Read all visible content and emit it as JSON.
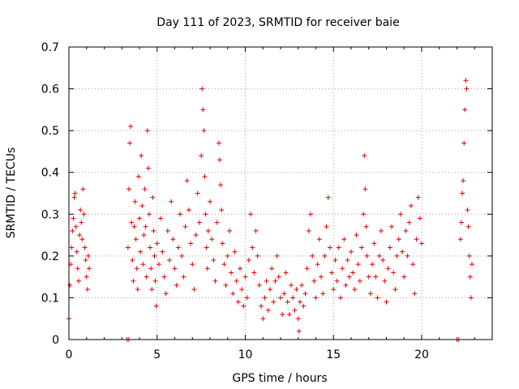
{
  "chart_data": {
    "type": "scatter",
    "title": "Day 111 of 2023, SRMTID for receiver baie",
    "xlabel": "GPS time / hours",
    "ylabel": "SRMTID / TECUs",
    "xlim": [
      0,
      24
    ],
    "ylim": [
      0,
      0.7
    ],
    "xticks": [
      0,
      5,
      10,
      15,
      20
    ],
    "xtick_labels": [
      "0",
      "5",
      "10",
      "15",
      "20"
    ],
    "yticks": [
      0,
      0.1,
      0.2,
      0.3,
      0.4,
      0.5,
      0.6,
      0.7
    ],
    "ytick_labels": [
      "0",
      "0.1",
      "0.2",
      "0.3",
      "0.4",
      "0.5",
      "0.6",
      "0.7"
    ],
    "grid": true,
    "marker": "+",
    "color": "#e00000",
    "series": [
      {
        "name": "SRMTID",
        "points": [
          [
            0.0,
            0.05
          ],
          [
            0.05,
            0.13
          ],
          [
            0.1,
            0.18
          ],
          [
            0.15,
            0.22
          ],
          [
            0.2,
            0.26
          ],
          [
            0.25,
            0.29
          ],
          [
            0.3,
            0.34
          ],
          [
            0.35,
            0.35
          ],
          [
            0.4,
            0.27
          ],
          [
            0.45,
            0.21
          ],
          [
            0.5,
            0.17
          ],
          [
            0.55,
            0.14
          ],
          [
            0.6,
            0.25
          ],
          [
            0.65,
            0.31
          ],
          [
            0.7,
            0.28
          ],
          [
            0.75,
            0.24
          ],
          [
            0.8,
            0.36
          ],
          [
            0.85,
            0.3
          ],
          [
            0.9,
            0.22
          ],
          [
            0.95,
            0.19
          ],
          [
            1.0,
            0.15
          ],
          [
            1.05,
            0.12
          ],
          [
            1.1,
            0.2
          ],
          [
            1.15,
            0.17
          ],
          [
            3.3,
            0.0
          ],
          [
            3.4,
            0.0
          ],
          [
            3.35,
            0.22
          ],
          [
            3.4,
            0.36
          ],
          [
            3.45,
            0.47
          ],
          [
            3.5,
            0.51
          ],
          [
            3.55,
            0.28
          ],
          [
            3.6,
            0.19
          ],
          [
            3.65,
            0.14
          ],
          [
            3.7,
            0.27
          ],
          [
            3.75,
            0.33
          ],
          [
            3.8,
            0.24
          ],
          [
            3.85,
            0.17
          ],
          [
            3.9,
            0.12
          ],
          [
            3.95,
            0.39
          ],
          [
            4.0,
            0.29
          ],
          [
            4.05,
            0.21
          ],
          [
            4.1,
            0.44
          ],
          [
            4.15,
            0.32
          ],
          [
            4.2,
            0.18
          ],
          [
            4.25,
            0.25
          ],
          [
            4.3,
            0.36
          ],
          [
            4.35,
            0.27
          ],
          [
            4.4,
            0.15
          ],
          [
            4.45,
            0.5
          ],
          [
            4.5,
            0.41
          ],
          [
            4.55,
            0.3
          ],
          [
            4.6,
            0.22
          ],
          [
            4.65,
            0.17
          ],
          [
            4.7,
            0.12
          ],
          [
            4.75,
            0.34
          ],
          [
            4.8,
            0.26
          ],
          [
            4.85,
            0.2
          ],
          [
            4.9,
            0.14
          ],
          [
            4.95,
            0.08
          ],
          [
            5.0,
            0.23
          ],
          [
            5.1,
            0.18
          ],
          [
            5.2,
            0.29
          ],
          [
            5.3,
            0.21
          ],
          [
            5.4,
            0.15
          ],
          [
            5.5,
            0.11
          ],
          [
            5.6,
            0.26
          ],
          [
            5.7,
            0.19
          ],
          [
            5.8,
            0.33
          ],
          [
            5.9,
            0.24
          ],
          [
            6.0,
            0.17
          ],
          [
            6.1,
            0.13
          ],
          [
            6.2,
            0.22
          ],
          [
            6.3,
            0.3
          ],
          [
            6.4,
            0.2
          ],
          [
            6.5,
            0.15
          ],
          [
            6.6,
            0.27
          ],
          [
            6.7,
            0.38
          ],
          [
            6.8,
            0.31
          ],
          [
            6.9,
            0.23
          ],
          [
            7.0,
            0.18
          ],
          [
            7.1,
            0.12
          ],
          [
            7.2,
            0.25
          ],
          [
            7.3,
            0.35
          ],
          [
            7.4,
            0.28
          ],
          [
            7.5,
            0.44
          ],
          [
            7.55,
            0.6
          ],
          [
            7.6,
            0.55
          ],
          [
            7.65,
            0.5
          ],
          [
            7.7,
            0.39
          ],
          [
            7.75,
            0.3
          ],
          [
            7.8,
            0.22
          ],
          [
            7.85,
            0.17
          ],
          [
            7.9,
            0.26
          ],
          [
            8.0,
            0.33
          ],
          [
            8.1,
            0.24
          ],
          [
            8.2,
            0.19
          ],
          [
            8.3,
            0.14
          ],
          [
            8.4,
            0.28
          ],
          [
            8.5,
            0.47
          ],
          [
            8.55,
            0.43
          ],
          [
            8.6,
            0.37
          ],
          [
            8.65,
            0.31
          ],
          [
            8.7,
            0.23
          ],
          [
            8.8,
            0.18
          ],
          [
            8.9,
            0.13
          ],
          [
            9.0,
            0.2
          ],
          [
            9.1,
            0.26
          ],
          [
            9.2,
            0.16
          ],
          [
            9.3,
            0.11
          ],
          [
            9.4,
            0.21
          ],
          [
            9.5,
            0.14
          ],
          [
            9.6,
            0.09
          ],
          [
            9.7,
            0.17
          ],
          [
            9.8,
            0.12
          ],
          [
            9.9,
            0.08
          ],
          [
            10.0,
            0.15
          ],
          [
            10.1,
            0.1
          ],
          [
            10.2,
            0.19
          ],
          [
            10.3,
            0.3
          ],
          [
            10.4,
            0.22
          ],
          [
            10.5,
            0.16
          ],
          [
            10.6,
            0.26
          ],
          [
            10.7,
            0.2
          ],
          [
            10.8,
            0.13
          ],
          [
            10.9,
            0.08
          ],
          [
            11.0,
            0.05
          ],
          [
            11.1,
            0.1
          ],
          [
            11.2,
            0.14
          ],
          [
            11.3,
            0.07
          ],
          [
            11.4,
            0.12
          ],
          [
            11.5,
            0.17
          ],
          [
            11.6,
            0.09
          ],
          [
            11.7,
            0.14
          ],
          [
            11.8,
            0.2
          ],
          [
            11.9,
            0.15
          ],
          [
            12.0,
            0.1
          ],
          [
            12.1,
            0.06
          ],
          [
            12.2,
            0.11
          ],
          [
            12.3,
            0.16
          ],
          [
            12.4,
            0.09
          ],
          [
            12.5,
            0.06
          ],
          [
            12.6,
            0.13
          ],
          [
            12.7,
            0.1
          ],
          [
            12.8,
            0.07
          ],
          [
            12.9,
            0.12
          ],
          [
            13.0,
            0.05
          ],
          [
            13.05,
            0.02
          ],
          [
            13.1,
            0.09
          ],
          [
            13.2,
            0.13
          ],
          [
            13.3,
            0.08
          ],
          [
            13.4,
            0.11
          ],
          [
            13.5,
            0.17
          ],
          [
            13.6,
            0.26
          ],
          [
            13.7,
            0.3
          ],
          [
            13.8,
            0.2
          ],
          [
            13.9,
            0.14
          ],
          [
            14.0,
            0.1
          ],
          [
            14.1,
            0.18
          ],
          [
            14.2,
            0.24
          ],
          [
            14.3,
            0.15
          ],
          [
            14.4,
            0.11
          ],
          [
            14.5,
            0.2
          ],
          [
            14.6,
            0.27
          ],
          [
            14.7,
            0.34
          ],
          [
            14.8,
            0.22
          ],
          [
            14.9,
            0.16
          ],
          [
            15.0,
            0.12
          ],
          [
            15.1,
            0.19
          ],
          [
            15.2,
            0.14
          ],
          [
            15.3,
            0.22
          ],
          [
            15.4,
            0.1
          ],
          [
            15.5,
            0.17
          ],
          [
            15.6,
            0.24
          ],
          [
            15.7,
            0.13
          ],
          [
            15.8,
            0.19
          ],
          [
            15.9,
            0.15
          ],
          [
            16.0,
            0.21
          ],
          [
            16.1,
            0.16
          ],
          [
            16.2,
            0.12
          ],
          [
            16.3,
            0.25
          ],
          [
            16.4,
            0.18
          ],
          [
            16.5,
            0.14
          ],
          [
            16.6,
            0.22
          ],
          [
            16.7,
            0.3
          ],
          [
            16.75,
            0.44
          ],
          [
            16.8,
            0.36
          ],
          [
            16.85,
            0.27
          ],
          [
            16.9,
            0.2
          ],
          [
            17.0,
            0.15
          ],
          [
            17.1,
            0.11
          ],
          [
            17.2,
            0.18
          ],
          [
            17.3,
            0.23
          ],
          [
            17.4,
            0.15
          ],
          [
            17.5,
            0.1
          ],
          [
            17.6,
            0.2
          ],
          [
            17.7,
            0.26
          ],
          [
            17.8,
            0.19
          ],
          [
            17.9,
            0.14
          ],
          [
            18.0,
            0.09
          ],
          [
            18.1,
            0.17
          ],
          [
            18.2,
            0.22
          ],
          [
            18.3,
            0.27
          ],
          [
            18.4,
            0.16
          ],
          [
            18.5,
            0.12
          ],
          [
            18.6,
            0.2
          ],
          [
            18.7,
            0.24
          ],
          [
            18.8,
            0.3
          ],
          [
            18.9,
            0.21
          ],
          [
            19.0,
            0.15
          ],
          [
            19.1,
            0.26
          ],
          [
            19.2,
            0.2
          ],
          [
            19.3,
            0.28
          ],
          [
            19.4,
            0.32
          ],
          [
            19.5,
            0.18
          ],
          [
            19.6,
            0.11
          ],
          [
            19.7,
            0.24
          ],
          [
            19.8,
            0.34
          ],
          [
            19.9,
            0.29
          ],
          [
            20.0,
            0.23
          ],
          [
            22.0,
            0.0
          ],
          [
            22.1,
            0.0
          ],
          [
            22.2,
            0.24
          ],
          [
            22.25,
            0.28
          ],
          [
            22.3,
            0.35
          ],
          [
            22.35,
            0.38
          ],
          [
            22.4,
            0.47
          ],
          [
            22.45,
            0.55
          ],
          [
            22.5,
            0.62
          ],
          [
            22.55,
            0.6
          ],
          [
            22.6,
            0.31
          ],
          [
            22.65,
            0.27
          ],
          [
            22.7,
            0.2
          ],
          [
            22.75,
            0.15
          ],
          [
            22.8,
            0.1
          ],
          [
            22.85,
            0.18
          ]
        ]
      }
    ]
  }
}
